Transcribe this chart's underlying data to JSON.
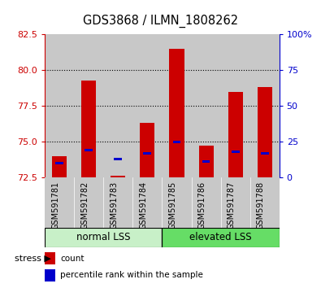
{
  "title": "GDS3868 / ILMN_1808262",
  "samples": [
    "GSM591781",
    "GSM591782",
    "GSM591783",
    "GSM591784",
    "GSM591785",
    "GSM591786",
    "GSM591787",
    "GSM591788"
  ],
  "red_values": [
    74.0,
    79.3,
    72.6,
    76.3,
    81.5,
    74.7,
    78.5,
    78.8
  ],
  "blue_values": [
    73.5,
    74.4,
    73.8,
    74.2,
    75.0,
    73.6,
    74.3,
    74.2
  ],
  "y_min": 72.5,
  "y_max": 82.5,
  "y_ticks": [
    72.5,
    75.0,
    77.5,
    80.0,
    82.5
  ],
  "right_y_ticks_pct": [
    0,
    25,
    50,
    75,
    100
  ],
  "groups": [
    {
      "label": "normal LSS",
      "start": 0,
      "end": 4,
      "color": "#c8f0c8"
    },
    {
      "label": "elevated LSS",
      "start": 4,
      "end": 8,
      "color": "#66dd66"
    }
  ],
  "bar_width": 0.5,
  "bar_bottom": 72.5,
  "red_color": "#cc0000",
  "blue_color": "#0000cc",
  "sample_area_color": "#c8c8c8",
  "tick_color_left": "#cc0000",
  "tick_color_right": "#0000cc",
  "legend_red": "count",
  "legend_blue": "percentile rank within the sample"
}
